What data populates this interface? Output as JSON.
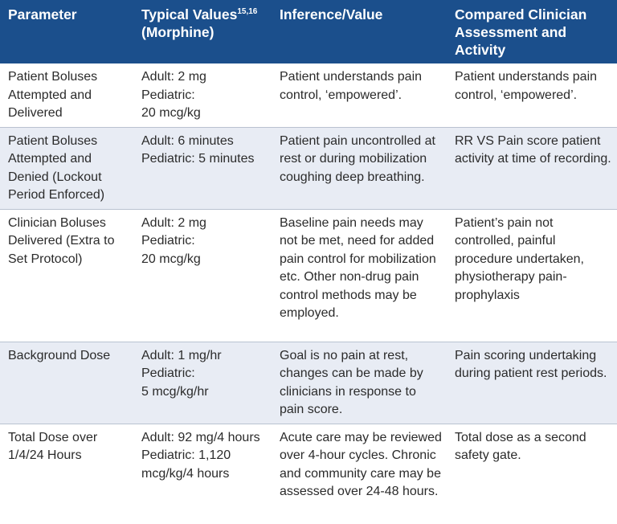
{
  "table": {
    "headers": [
      {
        "text": "Parameter",
        "sup": ""
      },
      {
        "text": "Typical Values",
        "sup": "15,16",
        "text_after": "(Morphine)"
      },
      {
        "text": "Inference/Value",
        "sup": ""
      },
      {
        "text": "Compared Clinician Assessment and Activity",
        "sup": ""
      }
    ],
    "rows": [
      {
        "parameter": "Patient Boluses Attempted and Delivered",
        "typical_values": [
          "Adult: 2 mg",
          "Pediatric:",
          "20 mcg/kg"
        ],
        "inference": "Patient understands pain control, ‘empowered’.",
        "clinician": "Patient understands pain control, ‘empowered’."
      },
      {
        "parameter": "Patient Boluses Attempted and Denied (Lockout Period Enforced)",
        "typical_values": [
          "Adult: 6 minutes",
          "Pediatric: 5 minutes"
        ],
        "inference": "Patient pain uncontrolled at rest or during mobilization coughing deep breathing.",
        "clinician": "RR VS Pain score patient activity at time of recording."
      },
      {
        "parameter": "Clinician Boluses Delivered (Extra to Set Protocol)",
        "typical_values": [
          "Adult: 2 mg",
          "Pediatric:",
          "20 mcg/kg"
        ],
        "inference": "Baseline pain needs may not be met, need for added pain control for mobilization etc. Other non-drug pain control methods may be employed.",
        "clinician": "Patient’s pain not controlled, painful procedure undertaken, physiotherapy pain-prophylaxis"
      },
      {
        "parameter": "Background Dose",
        "typical_values": [
          "Adult: 1 mg/hr",
          "Pediatric:",
          "5 mcg/kg/hr"
        ],
        "inference": "Goal is no pain at rest, changes can be made by clinicians in response to pain score.",
        "clinician": "Pain scoring undertaking during patient rest periods."
      },
      {
        "parameter": "Total Dose over 1/4/24 Hours",
        "typical_values": [
          "Adult: 92 mg/4 hours",
          "Pediatric: 1,120 mcg/kg/4 hours"
        ],
        "inference": "Acute care may be reviewed over 4-hour cycles. Chronic and community care may be assessed over 24-48 hours.",
        "clinician": "Total dose as a second safety gate."
      }
    ]
  }
}
